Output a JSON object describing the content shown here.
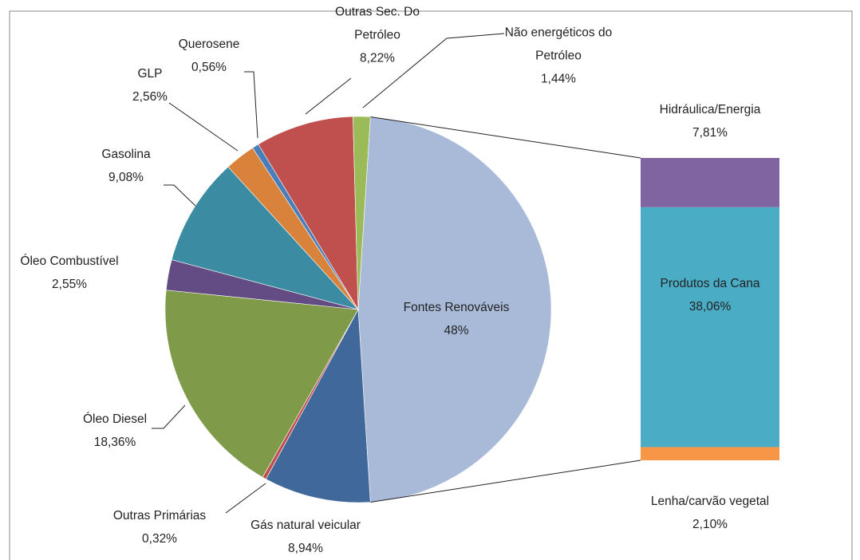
{
  "chart_data": {
    "type": "pie",
    "categories": [
      "Fontes Renováveis",
      "Gás natural veicular",
      "Outras Primárias",
      "Óleo Diesel",
      "Óleo Combustível",
      "Gasolina",
      "GLP",
      "Querosene",
      "Outras Sec. Do Petróleo",
      "Não energéticos do Petróleo"
    ],
    "values": [
      48,
      8.94,
      0.32,
      18.36,
      2.55,
      9.08,
      2.56,
      0.56,
      8.22,
      1.44
    ],
    "value_labels": [
      "48%",
      "8,94%",
      "0,32%",
      "18,36%",
      "2,55%",
      "9,08%",
      "2,56%",
      "0,56%",
      "8,22%",
      "1,44%"
    ],
    "colors": [
      "#a9bad8",
      "#41689a",
      "#c0504d",
      "#7f9a48",
      "#634b84",
      "#3b8ca2",
      "#d9823b",
      "#4a7ebb",
      "#c0504d",
      "#9bbb59"
    ],
    "breakdown": {
      "categories": [
        "Hidráulica/Energia",
        "Produtos da Cana",
        "Lenha/carvão vegetal"
      ],
      "values": [
        7.81,
        38.06,
        2.1
      ],
      "value_labels": [
        "7,81%",
        "38,06%",
        "2,10%"
      ],
      "colors": [
        "#8064a2",
        "#4bacc6",
        "#f79646"
      ]
    }
  }
}
